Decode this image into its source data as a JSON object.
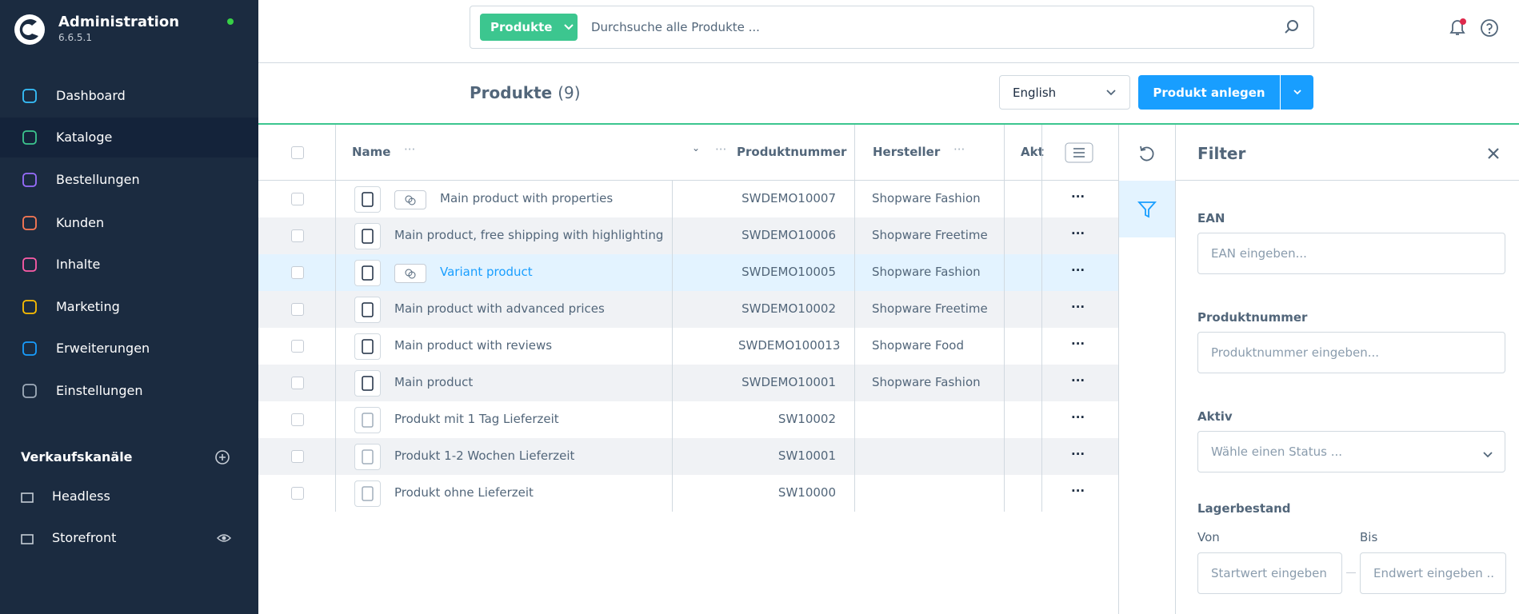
{
  "sidebar": {
    "title": "Administration",
    "version": "6.6.5.1",
    "nav": [
      "Dashboard",
      "Kataloge",
      "Bestellungen",
      "Kunden",
      "Inhalte",
      "Marketing",
      "Erweiterungen",
      "Einstellungen"
    ],
    "sales_channels": {
      "title": "Verkaufskanäle",
      "items": [
        "Headless",
        "Storefront"
      ]
    }
  },
  "search": {
    "scope": "Produkte",
    "placeholder": "Durchsuche alle Produkte ..."
  },
  "toolbar": {
    "title": "Produkte",
    "count": "(9)",
    "language": "English",
    "create_button": "Produkt anlegen"
  },
  "table": {
    "columns": [
      "Name",
      "Produktnummer",
      "Hersteller",
      "Akt"
    ],
    "rows": [
      [
        "Main product with properties",
        "SWDEMO10007",
        "Shopware Fashion"
      ],
      [
        "Main product, free shipping with highlighting",
        "SWDEMO10006",
        "Shopware Freetime"
      ],
      [
        "Variant product",
        "SWDEMO10005",
        "Shopware Fashion"
      ],
      [
        "Main product with advanced prices",
        "SWDEMO10002",
        "Shopware Freetime"
      ],
      [
        "Main product with reviews",
        "SWDEMO100013",
        "Shopware Food"
      ],
      [
        "Main product",
        "SWDEMO10001",
        "Shopware Fashion"
      ],
      [
        "Produkt mit 1 Tag Lieferzeit",
        "SW10002",
        ""
      ],
      [
        "Produkt 1-2 Wochen Lieferzeit",
        "SW10001",
        ""
      ],
      [
        "Produkt ohne Lieferzeit",
        "SW10000",
        ""
      ]
    ]
  },
  "filter": {
    "title": "Filter",
    "fields": [
      {
        "label": "EAN",
        "placeholder": "EAN eingeben..."
      },
      {
        "label": "Produktnummer",
        "placeholder": "Produktnummer eingeben..."
      },
      {
        "label": "Aktiv",
        "placeholder": "Wähle einen Status ..."
      }
    ],
    "stock": {
      "label": "Lagerbestand",
      "from_label": "Von",
      "to_label": "Bis",
      "from_placeholder": "Startwert eingeben",
      "to_placeholder": "Endwert eingeben .."
    }
  }
}
